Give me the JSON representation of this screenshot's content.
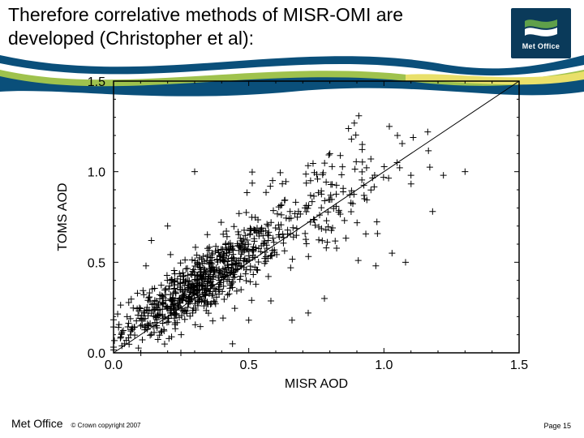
{
  "header": {
    "title": "Therefore correlative methods of MISR-OMI are\ndeveloped (Christopher et al):",
    "title_fontsize": 23,
    "title_color": "#000000"
  },
  "swoosh": {
    "colors": [
      "#0a4f7a",
      "#ffffff",
      "#9fc24d",
      "#e9e06a",
      "#0a4f7a"
    ],
    "height": 58
  },
  "logo": {
    "text": "Met Office",
    "bg": "#0a3a5a",
    "flag_green": "#5fa04a",
    "flag_white": "#ffffff"
  },
  "chart": {
    "type": "scatter",
    "xlabel": "MISR AOD",
    "ylabel": "TOMS AOD",
    "label_fontsize": 16,
    "tick_fontsize": 16,
    "xlim": [
      0.0,
      1.5
    ],
    "ylim": [
      0.0,
      1.5
    ],
    "xticks": [
      0.0,
      0.5,
      1.0,
      1.5
    ],
    "yticks": [
      0.0,
      0.5,
      1.0,
      1.5
    ],
    "xtick_labels": [
      "0.0",
      "0.5",
      "1.0",
      "1.5"
    ],
    "ytick_labels": [
      "0.0",
      "0.5",
      "1.0",
      "1.5"
    ],
    "frame_color": "#000000",
    "marker": "+",
    "marker_size": 8,
    "marker_color": "#000000",
    "marker_stroke": 1,
    "diagonal_line": {
      "from": [
        0,
        0
      ],
      "to": [
        1.5,
        1.5
      ],
      "color": "#000000",
      "width": 1
    },
    "background_color": "#ffffff",
    "cluster": {
      "n_core": 700,
      "core_mean": [
        0.32,
        0.38
      ],
      "core_sd": [
        0.14,
        0.15
      ],
      "core_corr": 0.82,
      "n_tail": 180,
      "tail_mean": [
        0.72,
        0.78
      ],
      "tail_sd": [
        0.2,
        0.22
      ],
      "tail_corr": 0.7
    },
    "outliers": [
      [
        0.3,
        1.0
      ],
      [
        0.25,
        0.1
      ],
      [
        0.5,
        0.18
      ],
      [
        0.78,
        0.3
      ],
      [
        0.97,
        0.48
      ],
      [
        1.03,
        0.55
      ],
      [
        1.08,
        0.5
      ],
      [
        1.18,
        0.78
      ],
      [
        1.22,
        0.98
      ],
      [
        1.3,
        1.0
      ],
      [
        0.66,
        0.18
      ],
      [
        0.72,
        0.22
      ],
      [
        1.05,
        1.2
      ],
      [
        1.02,
        1.25
      ],
      [
        0.92,
        1.15
      ],
      [
        0.88,
        1.18
      ],
      [
        0.8,
        1.1
      ],
      [
        0.2,
        0.7
      ],
      [
        0.14,
        0.62
      ],
      [
        0.05,
        0.2
      ],
      [
        0.04,
        0.05
      ],
      [
        0.44,
        0.05
      ],
      [
        0.12,
        0.48
      ],
      [
        1.1,
        0.98
      ]
    ]
  },
  "footer": {
    "org": "Met Office",
    "copyright": "© Crown copyright 2007",
    "page": "Page 15"
  }
}
